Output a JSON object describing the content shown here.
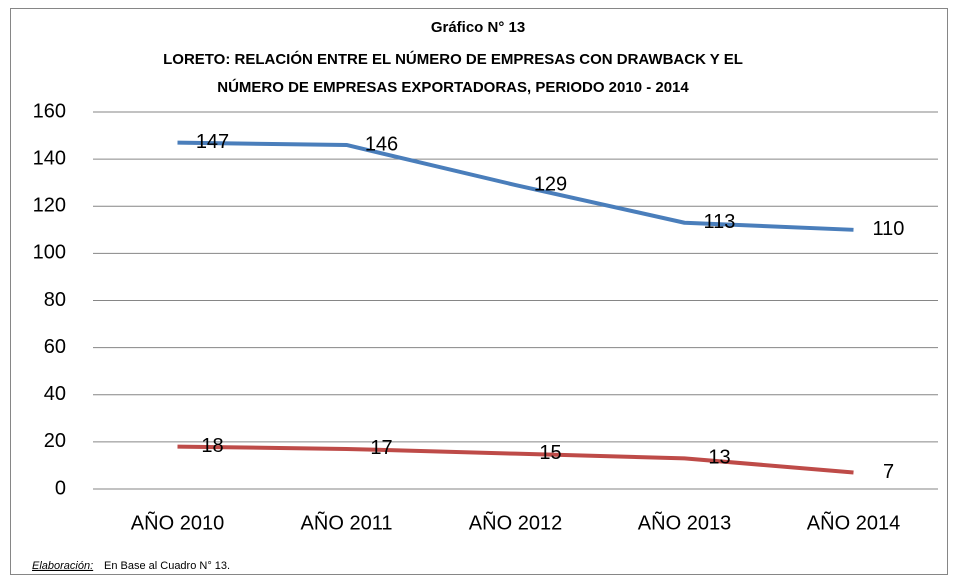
{
  "chart_data": {
    "type": "line",
    "title": [
      "Gráfico N° 13",
      "LORETO: RELACIÓN ENTRE EL NÚMERO DE EMPRESAS CON DRAWBACK Y EL",
      "NÚMERO DE EMPRESAS EXPORTADORAS, PERIODO 2010 - 2014"
    ],
    "categories": [
      "AÑO 2010",
      "AÑO 2011",
      "AÑO 2012",
      "AÑO 2013",
      "AÑO 2014"
    ],
    "series": [
      {
        "color": "#4a7ebb",
        "values": [
          147,
          146,
          129,
          113,
          110
        ]
      },
      {
        "color": "#be4b48",
        "values": [
          18,
          17,
          15,
          13,
          7
        ]
      }
    ],
    "ylim": [
      0,
      160
    ],
    "yticks": [
      0,
      20,
      40,
      60,
      80,
      100,
      120,
      140,
      160
    ],
    "grid": true,
    "note_label": "Elaboración:",
    "note": "En Base al Cuadro N° 13."
  }
}
